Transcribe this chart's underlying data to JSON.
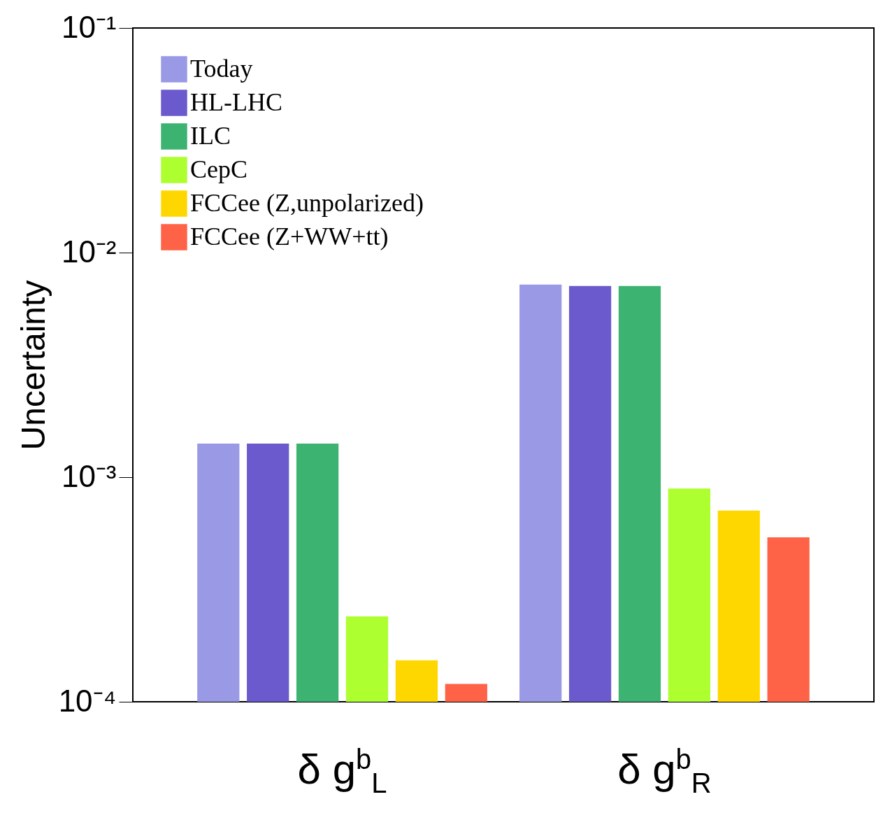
{
  "chart_data": {
    "type": "bar",
    "ylabel": "Uncertainty",
    "categories": [
      "δ g$^{b}$$_{L}$",
      "δ g$^{b}$$_{R}$"
    ],
    "series": [
      {
        "name": "Today",
        "color": "#9999e6",
        "values": [
          0.00141,
          0.0072
        ]
      },
      {
        "name": "HL-LHC",
        "color": "#6a5acd",
        "values": [
          0.00141,
          0.0071
        ]
      },
      {
        "name": "ILC",
        "color": "#3cb371",
        "values": [
          0.00141,
          0.0071
        ]
      },
      {
        "name": "CepC",
        "color": "#adff2f",
        "values": [
          0.00024,
          0.00089
        ]
      },
      {
        "name": "FCCee (Z,unpolarized)",
        "color": "#ffd700",
        "values": [
          0.000153,
          0.00071
        ]
      },
      {
        "name": "FCCee (Z+WW+tt)",
        "color": "#ff6347",
        "values": [
          0.00012,
          0.00054
        ]
      }
    ],
    "log": true,
    "ylim": [
      0.0001,
      0.1
    ],
    "yticks": [
      {
        "value": 0.0001,
        "label": "10⁻⁴"
      },
      {
        "value": 0.001,
        "label": "10⁻³"
      },
      {
        "value": 0.01,
        "label": "10⁻²"
      },
      {
        "value": 0.1,
        "label": "10⁻¹"
      }
    ],
    "grid": false,
    "legend": "top left"
  }
}
